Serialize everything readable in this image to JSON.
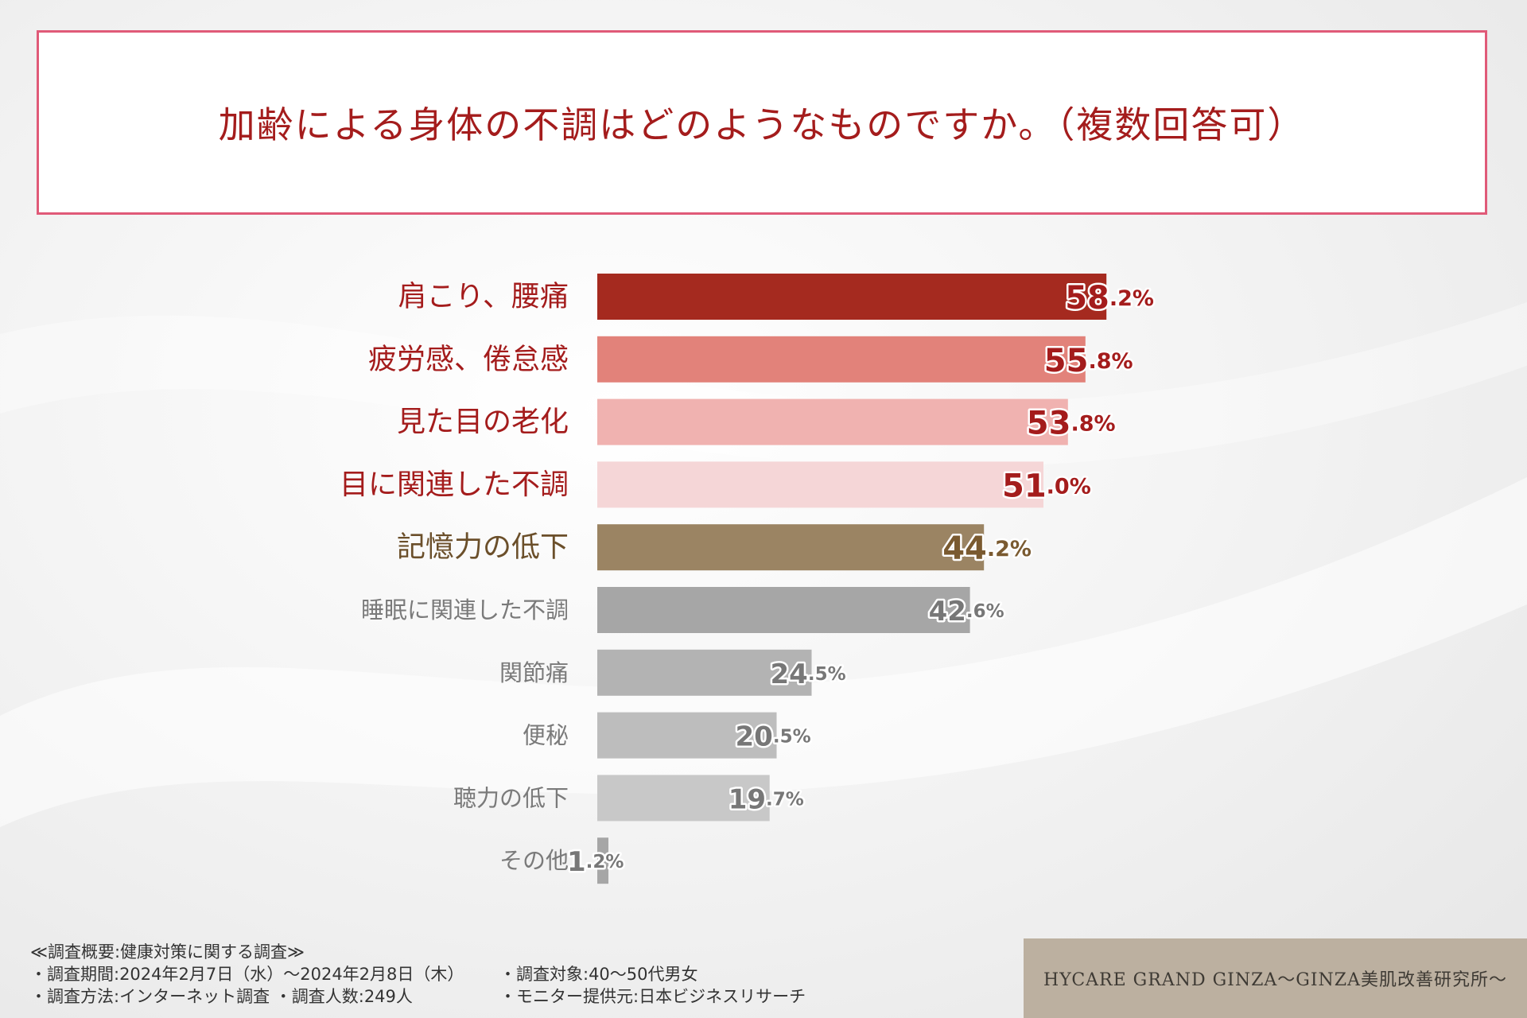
{
  "chart_data": {
    "type": "bar",
    "orientation": "horizontal",
    "title": "加齢による身体の不調はどのようなものですか。（複数回答可）",
    "categories": [
      "肩こり、腰痛",
      "疲労感、倦怠感",
      "見た目の老化",
      "目に関連した不調",
      "記憶力の低下",
      "睡眠に関連した不調",
      "関節痛",
      "便秘",
      "聴力の低下",
      "その他"
    ],
    "values": [
      58.2,
      55.8,
      53.8,
      51.0,
      44.2,
      42.6,
      24.5,
      20.5,
      19.7,
      1.2
    ],
    "unit": "%",
    "xlim": [
      0,
      100
    ],
    "bar_colors": [
      "#a52a1f",
      "#e2827a",
      "#f0b2b0",
      "#f5d6d7",
      "#9b8463",
      "#a6a6a6",
      "#b3b3b3",
      "#bdbdbd",
      "#c8c8c8",
      "#a6a6a6"
    ],
    "label_colors": [
      "#a41c1c",
      "#a41c1c",
      "#a41c1c",
      "#a41c1c",
      "#6b4f2a",
      "#7a7a7a",
      "#7a7a7a",
      "#7a7a7a",
      "#7a7a7a",
      "#7a7a7a"
    ],
    "value_colors": [
      "#a41c1c",
      "#a41c1c",
      "#a41c1c",
      "#a41c1c",
      "#7a5a30",
      "#777777",
      "#777777",
      "#777777",
      "#777777",
      "#777777"
    ],
    "grid": false,
    "legend": "none"
  },
  "notes": {
    "heading": "≪調査概要:健康対策に関する調査≫",
    "period": "・調査期間:2024年2月7日（水）〜2024年2月8日（木）",
    "method": "・調査方法:インターネット調査 ・調査人数:249人",
    "target": "・調査対象:40〜50代男女",
    "provider": "・モニター提供元:日本ビジネスリサーチ"
  },
  "brand": {
    "name": "HYCARE GRAND GINZA〜GINZA美肌改善研究所〜"
  }
}
